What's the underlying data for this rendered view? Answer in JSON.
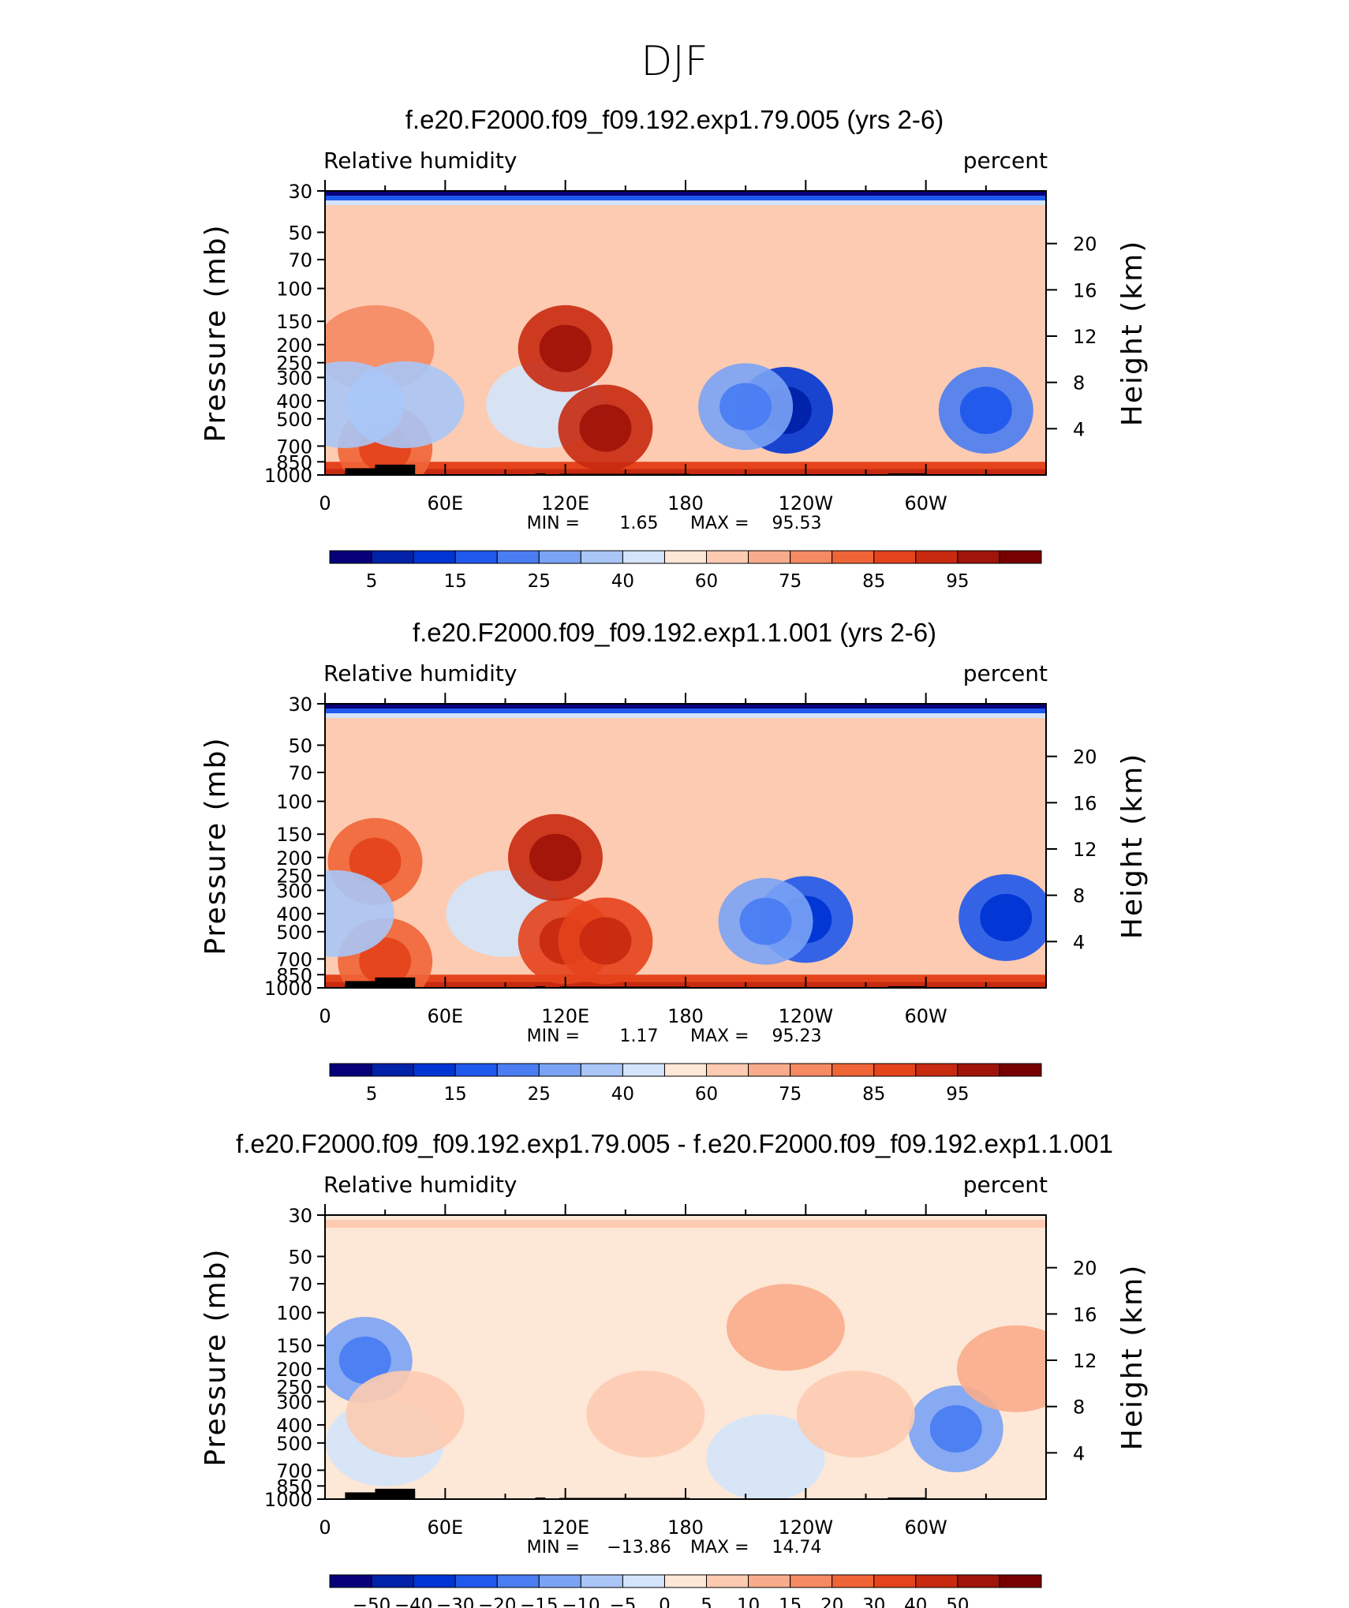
{
  "figure_title": "DJF",
  "colors": {
    "rh_scale": [
      "#08007a",
      "#0021a8",
      "#0035d4",
      "#1f58ec",
      "#4a7df2",
      "#7aa3f5",
      "#a9c6f7",
      "#d3e4fb",
      "#fde7d6",
      "#fdcbb1",
      "#f9ac8b",
      "#f58a63",
      "#f06537",
      "#e4431c",
      "#c82a11",
      "#a1140a",
      "#780000"
    ],
    "diff_scale": [
      "#08007a",
      "#0021a8",
      "#0035d4",
      "#1f58ec",
      "#4a7df2",
      "#7aa3f5",
      "#a9c6f7",
      "#d3e4fb",
      "#fde7d6",
      "#fdcbb1",
      "#f9ac8b",
      "#f58a63",
      "#f06537",
      "#e4431c",
      "#c82a11",
      "#a1140a",
      "#780000"
    ],
    "land": "#000000"
  },
  "chart_data": [
    {
      "type": "heatmap",
      "title": "f.e20.F2000.f09_f09.192.exp1.79.005 (yrs 2-6)",
      "variable": "Relative humidity",
      "units": "percent",
      "ylabel": "Pressure (mb)",
      "ylabel_right": "Height (km)",
      "x_ticks": [
        "0",
        "60E",
        "120E",
        "180",
        "120W",
        "60W"
      ],
      "y_ticks": [
        "30",
        "50",
        "70",
        "100",
        "150",
        "200",
        "250",
        "300",
        "400",
        "500",
        "700",
        "850",
        "1000"
      ],
      "height_ticks": [
        "20",
        "16",
        "12",
        "8",
        "4"
      ],
      "min_label": "MIN =",
      "min_value": "1.65",
      "max_label": "MAX =",
      "max_value": "95.53",
      "colorbar_labels": [
        "5",
        "15",
        "25",
        "40",
        "60",
        "75",
        "85",
        "95"
      ],
      "blobs": [
        {
          "lon": 330,
          "p": 450,
          "level": 4
        },
        {
          "lon": 110,
          "p": 420,
          "level": 7
        },
        {
          "lon": 230,
          "p": 450,
          "level": 2
        },
        {
          "lon": 210,
          "p": 430,
          "level": 5
        },
        {
          "lon": 140,
          "p": 560,
          "level": 14
        },
        {
          "lon": 120,
          "p": 210,
          "level": 14
        },
        {
          "lon": 30,
          "p": 720,
          "level": 12
        },
        {
          "lon": 25,
          "p": 210,
          "level": 11
        },
        {
          "lon": 10,
          "p": 420,
          "level": 6
        },
        {
          "lon": 40,
          "p": 420,
          "level": 6
        }
      ]
    },
    {
      "type": "heatmap",
      "title": "f.e20.F2000.f09_f09.192.exp1.1.001 (yrs 2-6)",
      "variable": "Relative humidity",
      "units": "percent",
      "ylabel": "Pressure (mb)",
      "ylabel_right": "Height (km)",
      "x_ticks": [
        "0",
        "60E",
        "120E",
        "180",
        "120W",
        "60W"
      ],
      "y_ticks": [
        "30",
        "50",
        "70",
        "100",
        "150",
        "200",
        "250",
        "300",
        "400",
        "500",
        "700",
        "850",
        "1000"
      ],
      "height_ticks": [
        "20",
        "16",
        "12",
        "8",
        "4"
      ],
      "min_label": "MIN =",
      "min_value": "1.17",
      "max_label": "MAX =",
      "max_value": "95.23",
      "colorbar_labels": [
        "5",
        "15",
        "25",
        "40",
        "60",
        "75",
        "85",
        "95"
      ],
      "blobs": [
        {
          "lon": 340,
          "p": 420,
          "level": 3
        },
        {
          "lon": 90,
          "p": 400,
          "level": 7
        },
        {
          "lon": 240,
          "p": 430,
          "level": 3
        },
        {
          "lon": 220,
          "p": 440,
          "level": 5
        },
        {
          "lon": 120,
          "p": 560,
          "level": 13
        },
        {
          "lon": 140,
          "p": 560,
          "level": 13
        },
        {
          "lon": 115,
          "p": 200,
          "level": 14
        },
        {
          "lon": 30,
          "p": 720,
          "level": 12
        },
        {
          "lon": 25,
          "p": 210,
          "level": 12
        },
        {
          "lon": 5,
          "p": 400,
          "level": 6
        }
      ]
    },
    {
      "type": "heatmap",
      "title": "f.e20.F2000.f09_f09.192.exp1.79.005 - f.e20.F2000.f09_f09.192.exp1.1.001",
      "variable": "Relative humidity",
      "units": "percent",
      "ylabel": "Pressure (mb)",
      "ylabel_right": "Height (km)",
      "x_ticks": [
        "0",
        "60E",
        "120E",
        "180",
        "120W",
        "60W"
      ],
      "y_ticks": [
        "30",
        "50",
        "70",
        "100",
        "150",
        "200",
        "250",
        "300",
        "400",
        "500",
        "700",
        "850",
        "1000"
      ],
      "height_ticks": [
        "20",
        "16",
        "12",
        "8",
        "4"
      ],
      "min_label": "MIN =",
      "min_value": "−13.86",
      "max_label": "MAX =",
      "max_value": "14.74",
      "colorbar_labels": [
        "−50",
        "−40",
        "−30",
        "−20",
        "−15",
        "−10",
        "−5",
        "0",
        "5",
        "10",
        "15",
        "20",
        "30",
        "40",
        "50"
      ],
      "blobs": [
        {
          "lon": 315,
          "p": 420,
          "level": 5
        },
        {
          "lon": 20,
          "p": 180,
          "level": 5
        },
        {
          "lon": 220,
          "p": 600,
          "level": 7
        },
        {
          "lon": 30,
          "p": 500,
          "level": 7
        },
        {
          "lon": 40,
          "p": 350,
          "level": 9
        },
        {
          "lon": 160,
          "p": 350,
          "level": 9
        },
        {
          "lon": 265,
          "p": 350,
          "level": 9
        },
        {
          "lon": 230,
          "p": 120,
          "level": 10
        },
        {
          "lon": 345,
          "p": 200,
          "level": 10
        }
      ]
    }
  ]
}
